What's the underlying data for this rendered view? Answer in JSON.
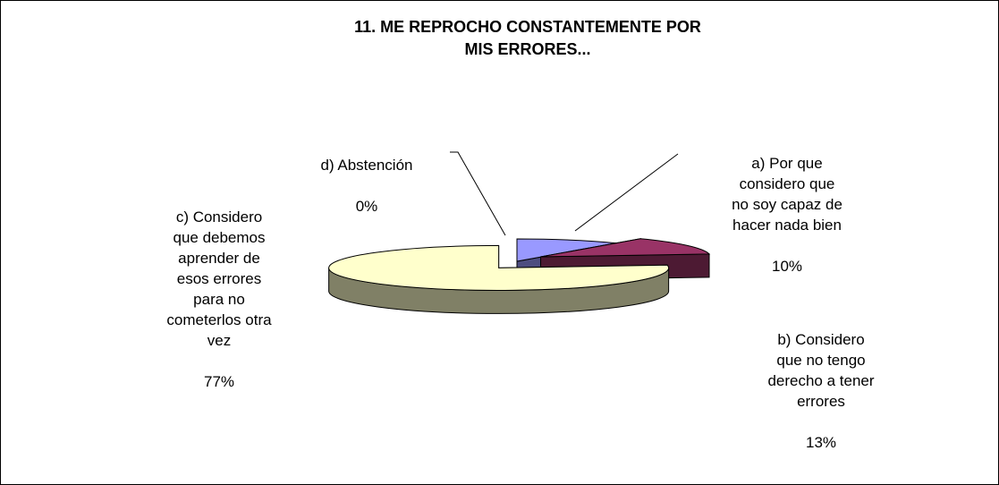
{
  "chart_data": {
    "type": "pie3d",
    "title": "11. ME REPROCHO CONSTANTEMENTE POR MIS ERRORES...",
    "categories": [
      "a) Por que\nconsidero que\nno soy capaz de\nhacer nada bien",
      "b) Considero\nque no tengo\nderecho a tener\nerrores",
      "c) Considero\nque debemos\naprender de\nesos errores\npara no\ncometerlos otra\nvez",
      "d) Abstención"
    ],
    "values": [
      10,
      13,
      77,
      0
    ],
    "value_labels": [
      "10%",
      "13%",
      "77%",
      "0%"
    ],
    "colors": [
      "#9999ff",
      "#993366",
      "#ffffcc",
      "#ffffff"
    ],
    "side_colors": [
      "#4d4d80",
      "#4d1a33",
      "#808066",
      "#808080"
    ]
  }
}
